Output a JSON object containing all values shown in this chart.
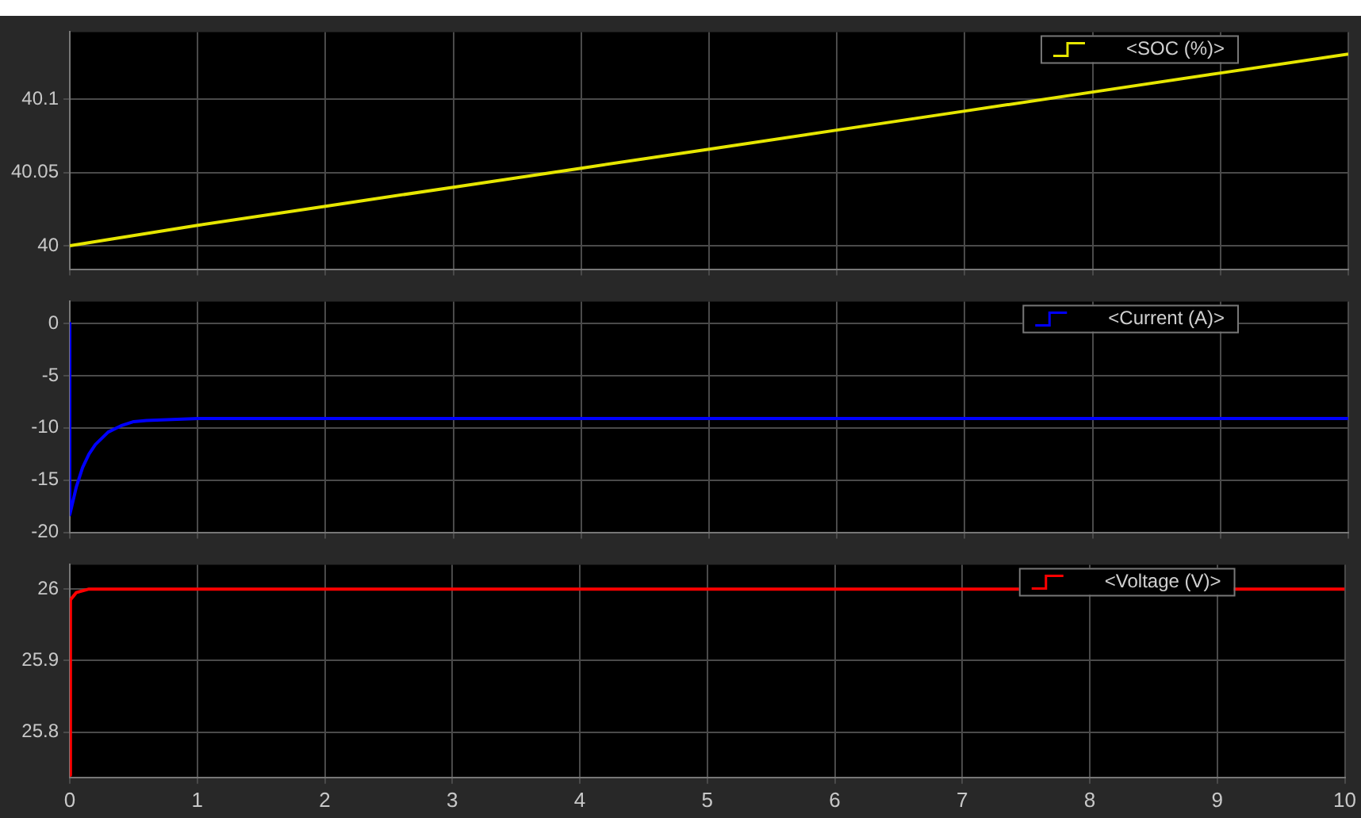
{
  "chart_data": [
    {
      "type": "line",
      "xlim": [
        0,
        10
      ],
      "xticks": [
        0,
        1,
        2,
        3,
        4,
        5,
        6,
        7,
        8,
        9,
        10
      ],
      "ylim": [
        39.984,
        40.146
      ],
      "yticks": [
        40,
        40.05,
        40.1
      ],
      "grid": true,
      "legend": "top right",
      "tick_labels": "y",
      "series": [
        {
          "name": "<SOC (%)>",
          "color": "#e6e600",
          "x": [
            0,
            1,
            2,
            3,
            4,
            5,
            6,
            7,
            8,
            9,
            10
          ],
          "values": [
            40.0,
            40.014,
            40.027,
            40.04,
            40.053,
            40.066,
            40.079,
            40.092,
            40.105,
            40.118,
            40.131
          ]
        }
      ]
    },
    {
      "type": "line",
      "xlim": [
        0,
        10
      ],
      "xticks": [
        0,
        1,
        2,
        3,
        4,
        5,
        6,
        7,
        8,
        9,
        10
      ],
      "ylim": [
        -20,
        2.1
      ],
      "yticks": [
        -20,
        -15,
        -10,
        -5,
        0
      ],
      "grid": true,
      "legend": "top right",
      "tick_labels": "y",
      "series": [
        {
          "name": "<Current (A)>",
          "color": "#0000ff",
          "x": [
            0,
            0,
            0.05,
            0.1,
            0.15,
            0.2,
            0.3,
            0.4,
            0.5,
            0.6,
            0.8,
            1,
            10
          ],
          "values": [
            0,
            -18.3,
            -15.7,
            -13.8,
            -12.5,
            -11.6,
            -10.4,
            -9.8,
            -9.4,
            -9.3,
            -9.2,
            -9.1,
            -9.1
          ]
        }
      ]
    },
    {
      "type": "line",
      "xlim": [
        0,
        10
      ],
      "xticks": [
        0,
        1,
        2,
        3,
        4,
        5,
        6,
        7,
        8,
        9,
        10
      ],
      "ylim": [
        25.737,
        26.034
      ],
      "yticks": [
        25.8,
        25.9,
        26
      ],
      "grid": true,
      "legend": "top right",
      "series": [
        {
          "name": "<Voltage (V)>",
          "color": "#ff0000",
          "x": [
            0,
            0.005,
            0.05,
            0.15,
            10
          ],
          "values": [
            25.74,
            25.985,
            25.995,
            26.0,
            26.0
          ]
        }
      ]
    }
  ]
}
